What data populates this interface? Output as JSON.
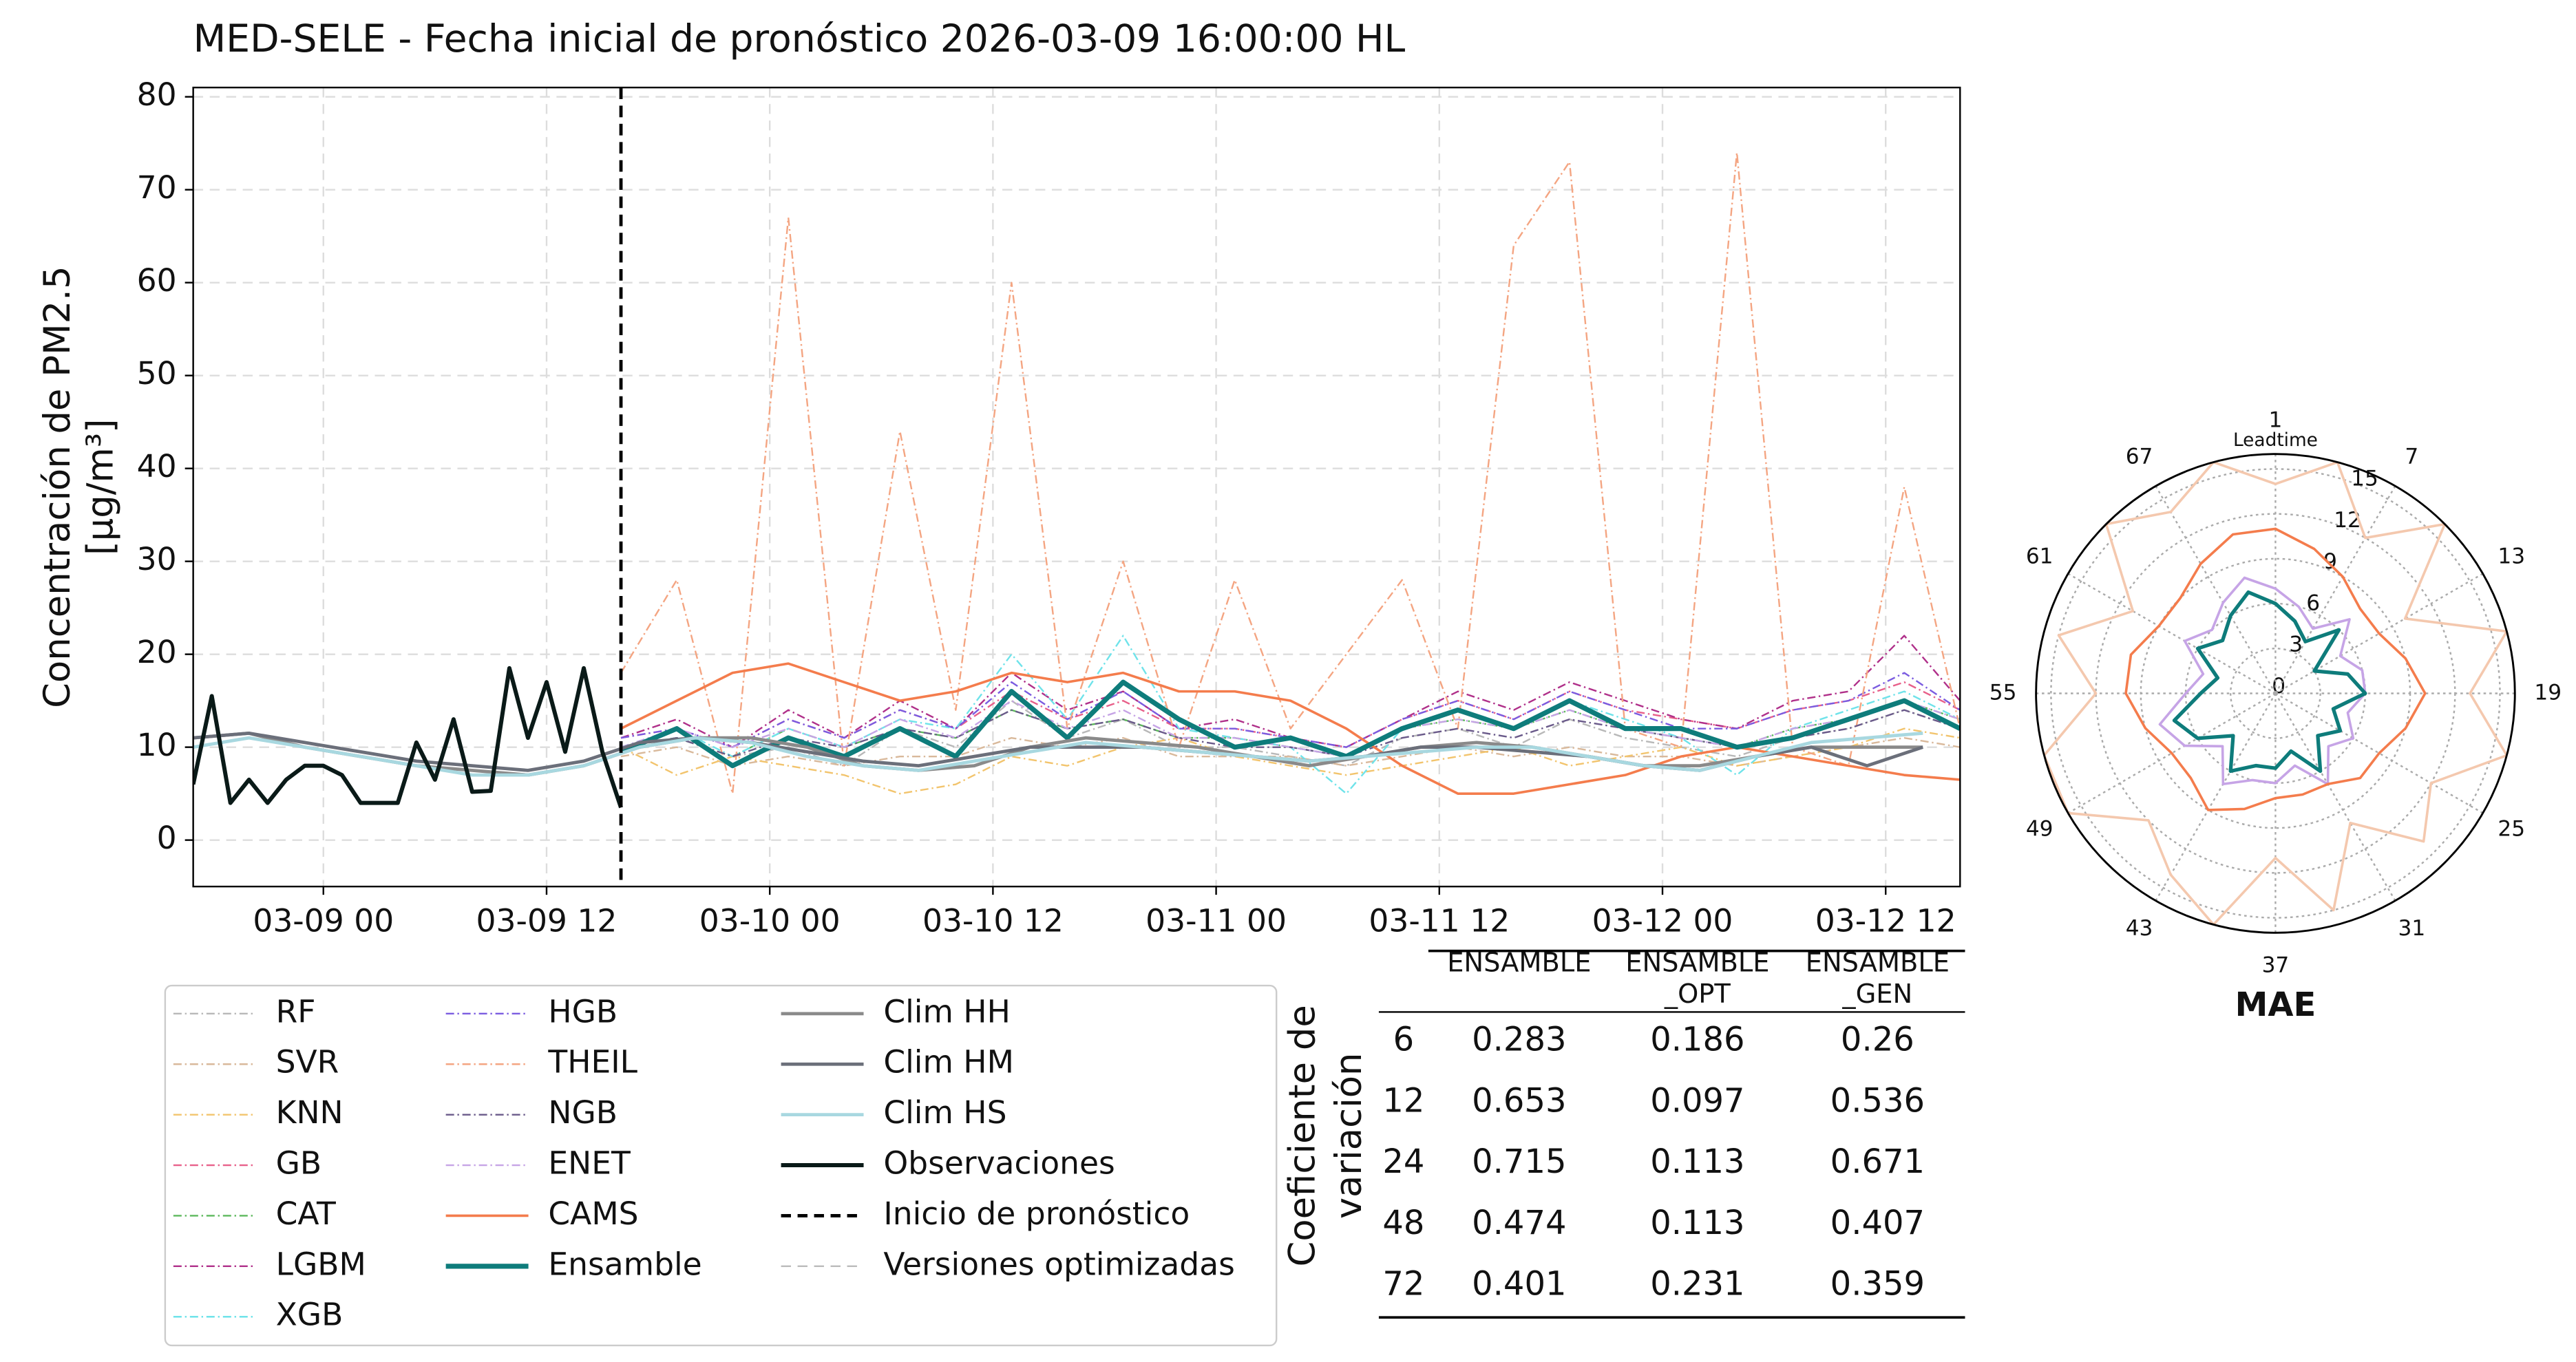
{
  "chart_data": [
    {
      "type": "line",
      "title": "MED-SELE - Fecha inicial de pronóstico 2026-03-09 16:00:00 HL",
      "ylabel": [
        "Concentración de PM2.5",
        "[μg/m³]"
      ],
      "xlim": [
        "03-08 17",
        "03-12 16"
      ],
      "xticks": [
        "03-09 00",
        "03-09 12",
        "03-10 00",
        "03-10 12",
        "03-11 00",
        "03-11 12",
        "03-12 00",
        "03-12 12"
      ],
      "ylim": [
        -5,
        81
      ],
      "yticks": [
        0,
        10,
        20,
        30,
        40,
        50,
        60,
        70,
        80
      ],
      "grid": true,
      "x": [
        "03-09 16",
        "03-09 19",
        "03-09 22",
        "03-10 01",
        "03-10 04",
        "03-10 07",
        "03-10 10",
        "03-10 13",
        "03-10 16",
        "03-10 19",
        "03-10 22",
        "03-11 01",
        "03-11 04",
        "03-11 07",
        "03-11 10",
        "03-11 13",
        "03-11 16",
        "03-11 19",
        "03-11 22",
        "03-12 01",
        "03-12 04",
        "03-12 07",
        "03-12 10",
        "03-12 13",
        "03-12 16"
      ],
      "series": [
        {
          "name": "RF",
          "color": "#b8b8b8",
          "style": "dashdot",
          "values": [
            10,
            11,
            9,
            10,
            8,
            12,
            10,
            15,
            11,
            13,
            10,
            10,
            9,
            8,
            11,
            12,
            10,
            13,
            11,
            10,
            9,
            11,
            12,
            14,
            12
          ]
        },
        {
          "name": "SVR",
          "color": "#d9b99b",
          "style": "dashdot",
          "values": [
            9,
            10,
            8,
            9,
            8,
            9,
            9,
            11,
            10,
            11,
            9,
            9,
            9,
            8,
            9,
            10,
            9,
            10,
            9,
            9,
            8,
            9,
            10,
            11,
            10
          ]
        },
        {
          "name": "KNN",
          "color": "#f2c46d",
          "style": "dashdot",
          "values": [
            10,
            7,
            9,
            8,
            7,
            5,
            6,
            9,
            8,
            10,
            11,
            9,
            8,
            7,
            8,
            9,
            10,
            8,
            9,
            10,
            8,
            9,
            10,
            12,
            11
          ]
        },
        {
          "name": "GB",
          "color": "#e8608a",
          "style": "dashdot",
          "values": [
            11,
            12,
            10,
            13,
            11,
            14,
            12,
            16,
            13,
            15,
            12,
            12,
            11,
            10,
            13,
            15,
            13,
            16,
            14,
            13,
            12,
            14,
            15,
            17,
            14
          ]
        },
        {
          "name": "CAT",
          "color": "#5cb85c",
          "style": "dashdot",
          "values": [
            10,
            11,
            9,
            12,
            10,
            12,
            11,
            14,
            12,
            13,
            11,
            11,
            10,
            9,
            12,
            13,
            12,
            14,
            12,
            11,
            10,
            12,
            13,
            15,
            13
          ]
        },
        {
          "name": "LGBM",
          "color": "#b0308a",
          "style": "dashdot",
          "values": [
            11,
            13,
            10,
            14,
            11,
            15,
            12,
            18,
            14,
            16,
            12,
            13,
            11,
            10,
            13,
            16,
            14,
            17,
            15,
            13,
            12,
            15,
            16,
            22,
            15
          ]
        },
        {
          "name": "XGB",
          "color": "#6fe3ea",
          "style": "dashdot",
          "values": [
            10,
            12,
            9,
            12,
            10,
            13,
            12,
            20,
            13,
            22,
            12,
            11,
            10,
            5,
            12,
            14,
            12,
            15,
            13,
            11,
            7,
            12,
            14,
            16,
            13
          ]
        },
        {
          "name": "HGB",
          "color": "#7b5ce0",
          "style": "dashdot",
          "values": [
            11,
            12,
            10,
            13,
            11,
            14,
            12,
            17,
            13,
            16,
            12,
            12,
            11,
            10,
            13,
            15,
            13,
            16,
            14,
            12,
            12,
            14,
            15,
            18,
            14
          ]
        },
        {
          "name": "THEIL",
          "color": "#f4a582",
          "style": "dashdot",
          "values": [
            18,
            28,
            5,
            67,
            8,
            44,
            14,
            60,
            12,
            30,
            10,
            28,
            12,
            20,
            28,
            12,
            64,
            73,
            12,
            10,
            74,
            10,
            8,
            38,
            12
          ]
        },
        {
          "name": "NGB",
          "color": "#6a5a8a",
          "style": "dashdot",
          "values": [
            10,
            11,
            9,
            11,
            10,
            12,
            11,
            14,
            12,
            13,
            11,
            10,
            10,
            9,
            11,
            12,
            11,
            13,
            12,
            11,
            10,
            11,
            12,
            14,
            12
          ]
        },
        {
          "name": "ENET",
          "color": "#c6a4e6",
          "style": "dashdot",
          "values": [
            10,
            12,
            10,
            12,
            10,
            13,
            11,
            15,
            12,
            14,
            11,
            11,
            10,
            9,
            12,
            13,
            12,
            14,
            12,
            11,
            10,
            12,
            13,
            15,
            13
          ]
        },
        {
          "name": "CAMS",
          "color": "#f47c4c",
          "style": "solid",
          "width": 1.5,
          "values": [
            12,
            15,
            18,
            19,
            17,
            15,
            16,
            18,
            17,
            18,
            16,
            16,
            15,
            12,
            8,
            5,
            5,
            6,
            7,
            9,
            10,
            9,
            8,
            7,
            6.5
          ]
        },
        {
          "name": "Ensamble",
          "color": "#0e7c7b",
          "style": "solid",
          "width": 3,
          "values": [
            9.5,
            12,
            8,
            11,
            9,
            12,
            9,
            16,
            11,
            17,
            13,
            10,
            11,
            9,
            12,
            14,
            12,
            15,
            12,
            12,
            10,
            11,
            13,
            15,
            12
          ]
        },
        {
          "name": "Clim HH",
          "color": "#8a8a8a",
          "style": "solid",
          "width": 2,
          "x": [
            "03-08 17",
            "03-08 20",
            "03-08 23",
            "03-09 02",
            "03-09 05",
            "03-09 08",
            "03-09 11",
            "03-09 14",
            "03-09 17",
            "03-09 20",
            "03-09 23",
            "03-10 02",
            "03-10 05",
            "03-10 08",
            "03-10 11",
            "03-10 14",
            "03-10 17",
            "03-10 20",
            "03-10 23",
            "03-11 02",
            "03-11 05",
            "03-11 08",
            "03-11 11",
            "03-11 14",
            "03-11 17",
            "03-11 20",
            "03-11 23",
            "03-12 02",
            "03-12 05",
            "03-12 08",
            "03-12 11",
            "03-12 14"
          ],
          "values": [
            11,
            11.5,
            10,
            9,
            8,
            7.5,
            7,
            8,
            10,
            11,
            11,
            10,
            8,
            7.5,
            8,
            10,
            11,
            10.5,
            10,
            9,
            8,
            9,
            10,
            10.5,
            10,
            9,
            8,
            8,
            9,
            10,
            10,
            10
          ]
        },
        {
          "name": "Clim HM",
          "color": "#6b6f7a",
          "style": "solid",
          "width": 2,
          "x": [
            "03-08 17",
            "03-08 20",
            "03-08 23",
            "03-09 02",
            "03-09 05",
            "03-09 08",
            "03-09 11",
            "03-09 14",
            "03-09 17",
            "03-09 20",
            "03-09 23",
            "03-10 02",
            "03-10 05",
            "03-10 08",
            "03-10 11",
            "03-10 14",
            "03-10 17",
            "03-10 20",
            "03-10 23",
            "03-11 02",
            "03-11 05",
            "03-11 08",
            "03-11 11",
            "03-11 14",
            "03-11 17",
            "03-11 20",
            "03-11 23",
            "03-12 02",
            "03-12 05",
            "03-12 08",
            "03-12 11",
            "03-12 14"
          ],
          "values": [
            11,
            11.5,
            10.5,
            9.5,
            8.5,
            8,
            7.5,
            8.5,
            10.5,
            11,
            10.5,
            9.5,
            8.5,
            8,
            9,
            10,
            10,
            10,
            9.5,
            9,
            8.5,
            9,
            10,
            10,
            9.5,
            9,
            8,
            7.5,
            9,
            10,
            8,
            10
          ]
        },
        {
          "name": "Clim HS",
          "color": "#a8d8e0",
          "style": "solid",
          "width": 2,
          "x": [
            "03-08 17",
            "03-08 20",
            "03-08 23",
            "03-09 02",
            "03-09 05",
            "03-09 08",
            "03-09 11",
            "03-09 14",
            "03-09 17",
            "03-09 20",
            "03-09 23",
            "03-10 02",
            "03-10 05",
            "03-10 08",
            "03-10 11",
            "03-10 14",
            "03-10 17",
            "03-10 20",
            "03-10 23",
            "03-11 02",
            "03-11 05",
            "03-11 08",
            "03-11 11",
            "03-11 14",
            "03-11 17",
            "03-11 20",
            "03-11 23",
            "03-12 02",
            "03-12 05",
            "03-12 08",
            "03-12 11",
            "03-12 14"
          ],
          "values": [
            10,
            11,
            10,
            9,
            8,
            7,
            7,
            8,
            10,
            11,
            10.5,
            9,
            8,
            7.5,
            8.5,
            9.5,
            10.5,
            10,
            9.5,
            9,
            8.5,
            9,
            9.5,
            10,
            10,
            9,
            8,
            7.5,
            9,
            10.5,
            11,
            11.5
          ]
        },
        {
          "name": "Observaciones",
          "color": "#0a1a18",
          "style": "solid",
          "width": 2.5,
          "x": [
            "03-08 17",
            "03-08 18",
            "03-08 19",
            "03-08 20",
            "03-08 21",
            "03-08 22",
            "03-08 23",
            "03-09 00",
            "03-09 01",
            "03-09 02",
            "03-09 03",
            "03-09 04",
            "03-09 05",
            "03-09 06",
            "03-09 07",
            "03-09 08",
            "03-09 09",
            "03-09 10",
            "03-09 11",
            "03-09 12",
            "03-09 13",
            "03-09 14",
            "03-09 15",
            "03-09 16"
          ],
          "values": [
            6,
            15.5,
            4,
            6.5,
            4,
            6.5,
            8,
            8,
            7,
            4,
            4,
            4,
            10.5,
            6.5,
            13,
            5.2,
            5.3,
            18.5,
            11,
            17,
            9.5,
            18.5,
            9.5,
            3.5
          ]
        }
      ],
      "forecast_start": {
        "name": "Inicio de pronóstico",
        "x": "03-09 16",
        "color": "#000000"
      },
      "legend_extra": [
        {
          "name": "Versiones optimizadas",
          "color": "#bbbbbb",
          "style": "dashed"
        }
      ],
      "legend_columns": 3
    },
    {
      "type": "polar",
      "title": "MAE",
      "theta_label": "Leadtime",
      "thetaticks": [
        1,
        7,
        13,
        19,
        25,
        31,
        37,
        43,
        49,
        55,
        61,
        67
      ],
      "theta_period": 72,
      "rlim": [
        0,
        16
      ],
      "rticks": [
        0,
        3,
        6,
        9,
        12,
        15
      ],
      "theta": [
        1,
        4,
        7,
        10,
        13,
        16,
        19,
        22,
        25,
        28,
        31,
        34,
        37,
        40,
        43,
        46,
        49,
        52,
        55,
        58,
        61,
        64,
        67,
        70
      ],
      "series": [
        {
          "name": "THEIL",
          "color": "#f4c8ae",
          "values": [
            14,
            16,
            12,
            16,
            10,
            16,
            13,
            16,
            12,
            14,
            10,
            15,
            11,
            16,
            14,
            12,
            16,
            16,
            12,
            15,
            11,
            16,
            14,
            16
          ]
        },
        {
          "name": "KNN",
          "color": "#c6a4e6",
          "values": [
            7,
            6,
            5,
            7,
            5,
            6,
            6,
            5,
            6,
            5,
            7,
            5,
            6,
            6,
            7,
            5,
            7,
            8,
            6,
            5,
            7,
            6,
            7,
            8
          ]
        },
        {
          "name": "CAMS",
          "color": "#f47c4c",
          "values": [
            11,
            10,
            9,
            8,
            8,
            9,
            10,
            9,
            8,
            8,
            7,
            7,
            7,
            8,
            9,
            8,
            8,
            9,
            10,
            10,
            9,
            9,
            10,
            11
          ]
        },
        {
          "name": "Ensamble",
          "color": "#0e7c7b",
          "values": [
            6,
            5,
            4,
            6,
            3,
            5,
            6,
            4,
            5,
            4,
            6,
            4,
            5,
            5,
            6,
            4,
            6,
            7,
            5,
            4,
            6,
            5,
            6,
            7
          ]
        }
      ]
    }
  ],
  "table": {
    "row_header": [
      "Coeficiente de",
      "variación"
    ],
    "columns": [
      [
        "ENSAMBLE"
      ],
      [
        "ENSAMBLE",
        "_OPT"
      ],
      [
        "ENSAMBLE",
        "_GEN"
      ]
    ],
    "rows": [
      [
        6,
        0.283,
        0.186,
        0.26
      ],
      [
        12,
        0.653,
        0.097,
        0.536
      ],
      [
        24,
        0.715,
        0.113,
        0.671
      ],
      [
        48,
        0.474,
        0.113,
        0.407
      ],
      [
        72,
        0.401,
        0.231,
        0.359
      ]
    ]
  }
}
